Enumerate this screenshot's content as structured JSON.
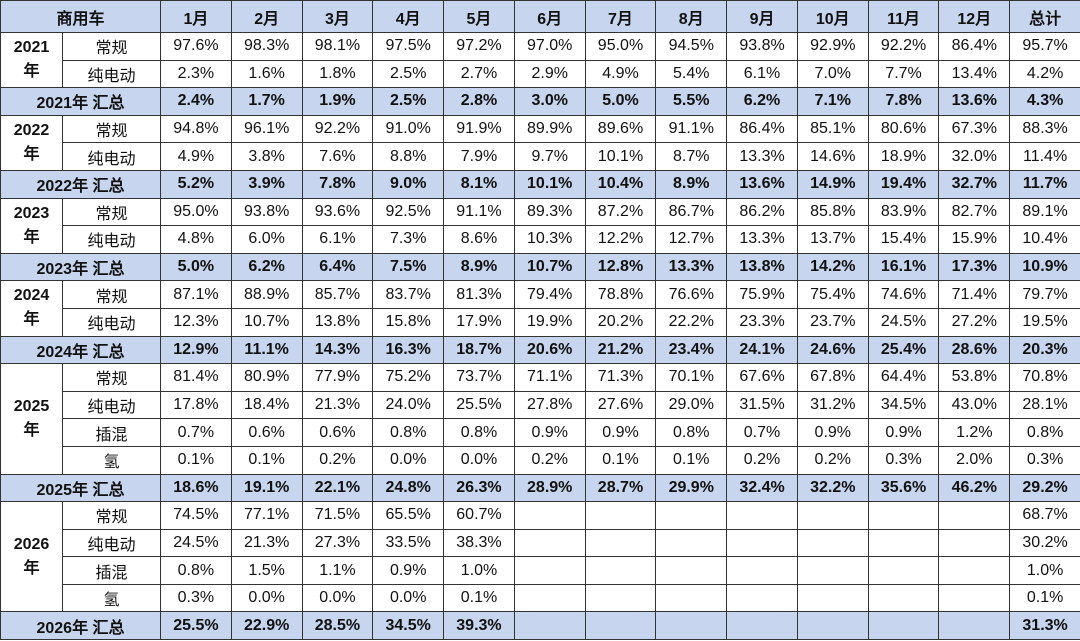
{
  "header": {
    "label": "商用车",
    "months": [
      "1月",
      "2月",
      "3月",
      "4月",
      "5月",
      "6月",
      "7月",
      "8月",
      "9月",
      "10月",
      "11月",
      "12月"
    ],
    "total": "总计"
  },
  "groups": [
    {
      "year": [
        "2021",
        "年"
      ],
      "rows": [
        {
          "type": "常规",
          "values": [
            "97.6%",
            "98.3%",
            "98.1%",
            "97.5%",
            "97.2%",
            "97.0%",
            "95.0%",
            "94.5%",
            "93.8%",
            "92.9%",
            "92.2%",
            "86.4%",
            "95.7%"
          ]
        },
        {
          "type": "纯电动",
          "values": [
            "2.3%",
            "1.6%",
            "1.8%",
            "2.5%",
            "2.7%",
            "2.9%",
            "4.9%",
            "5.4%",
            "6.1%",
            "7.0%",
            "7.7%",
            "13.4%",
            "4.2%"
          ]
        }
      ],
      "summary": {
        "label": "2021年 汇总",
        "values": [
          "2.4%",
          "1.7%",
          "1.9%",
          "2.5%",
          "2.8%",
          "3.0%",
          "5.0%",
          "5.5%",
          "6.2%",
          "7.1%",
          "7.8%",
          "13.6%",
          "4.3%"
        ]
      }
    },
    {
      "year": [
        "2022",
        "年"
      ],
      "rows": [
        {
          "type": "常规",
          "values": [
            "94.8%",
            "96.1%",
            "92.2%",
            "91.0%",
            "91.9%",
            "89.9%",
            "89.6%",
            "91.1%",
            "86.4%",
            "85.1%",
            "80.6%",
            "67.3%",
            "88.3%"
          ]
        },
        {
          "type": "纯电动",
          "values": [
            "4.9%",
            "3.8%",
            "7.6%",
            "8.8%",
            "7.9%",
            "9.7%",
            "10.1%",
            "8.7%",
            "13.3%",
            "14.6%",
            "18.9%",
            "32.0%",
            "11.4%"
          ]
        }
      ],
      "summary": {
        "label": "2022年 汇总",
        "values": [
          "5.2%",
          "3.9%",
          "7.8%",
          "9.0%",
          "8.1%",
          "10.1%",
          "10.4%",
          "8.9%",
          "13.6%",
          "14.9%",
          "19.4%",
          "32.7%",
          "11.7%"
        ]
      }
    },
    {
      "year": [
        "2023",
        "年"
      ],
      "rows": [
        {
          "type": "常规",
          "values": [
            "95.0%",
            "93.8%",
            "93.6%",
            "92.5%",
            "91.1%",
            "89.3%",
            "87.2%",
            "86.7%",
            "86.2%",
            "85.8%",
            "83.9%",
            "82.7%",
            "89.1%"
          ]
        },
        {
          "type": "纯电动",
          "values": [
            "4.8%",
            "6.0%",
            "6.1%",
            "7.3%",
            "8.6%",
            "10.3%",
            "12.2%",
            "12.7%",
            "13.3%",
            "13.7%",
            "15.4%",
            "15.9%",
            "10.4%"
          ]
        }
      ],
      "summary": {
        "label": "2023年 汇总",
        "values": [
          "5.0%",
          "6.2%",
          "6.4%",
          "7.5%",
          "8.9%",
          "10.7%",
          "12.8%",
          "13.3%",
          "13.8%",
          "14.2%",
          "16.1%",
          "17.3%",
          "10.9%"
        ]
      }
    },
    {
      "year": [
        "2024",
        "年"
      ],
      "rows": [
        {
          "type": "常规",
          "values": [
            "87.1%",
            "88.9%",
            "85.7%",
            "83.7%",
            "81.3%",
            "79.4%",
            "78.8%",
            "76.6%",
            "75.9%",
            "75.4%",
            "74.6%",
            "71.4%",
            "79.7%"
          ]
        },
        {
          "type": "纯电动",
          "values": [
            "12.3%",
            "10.7%",
            "13.8%",
            "15.8%",
            "17.9%",
            "19.9%",
            "20.2%",
            "22.2%",
            "23.3%",
            "23.7%",
            "24.5%",
            "27.2%",
            "19.5%"
          ]
        }
      ],
      "summary": {
        "label": "2024年 汇总",
        "values": [
          "12.9%",
          "11.1%",
          "14.3%",
          "16.3%",
          "18.7%",
          "20.6%",
          "21.2%",
          "23.4%",
          "24.1%",
          "24.6%",
          "25.4%",
          "28.6%",
          "20.3%"
        ]
      }
    },
    {
      "year": [
        "2025",
        "年"
      ],
      "rows": [
        {
          "type": "常规",
          "values": [
            "81.4%",
            "80.9%",
            "77.9%",
            "75.2%",
            "73.7%",
            "71.1%",
            "71.3%",
            "70.1%",
            "67.6%",
            "67.8%",
            "64.4%",
            "53.8%",
            "70.8%"
          ]
        },
        {
          "type": "纯电动",
          "values": [
            "17.8%",
            "18.4%",
            "21.3%",
            "24.0%",
            "25.5%",
            "27.8%",
            "27.6%",
            "29.0%",
            "31.5%",
            "31.2%",
            "34.5%",
            "43.0%",
            "28.1%"
          ]
        },
        {
          "type": "插混",
          "values": [
            "0.7%",
            "0.6%",
            "0.6%",
            "0.8%",
            "0.8%",
            "0.9%",
            "0.9%",
            "0.8%",
            "0.7%",
            "0.9%",
            "0.9%",
            "1.2%",
            "0.8%"
          ]
        },
        {
          "type": "氢",
          "values": [
            "0.1%",
            "0.1%",
            "0.2%",
            "0.0%",
            "0.0%",
            "0.2%",
            "0.1%",
            "0.1%",
            "0.2%",
            "0.2%",
            "0.3%",
            "2.0%",
            "0.3%"
          ]
        }
      ],
      "summary": {
        "label": "2025年 汇总",
        "values": [
          "18.6%",
          "19.1%",
          "22.1%",
          "24.8%",
          "26.3%",
          "28.9%",
          "28.7%",
          "29.9%",
          "32.4%",
          "32.2%",
          "35.6%",
          "46.2%",
          "29.2%"
        ]
      }
    },
    {
      "year": [
        "2026",
        "年"
      ],
      "rows": [
        {
          "type": "常规",
          "values": [
            "74.5%",
            "77.1%",
            "71.5%",
            "65.5%",
            "60.7%",
            null,
            null,
            null,
            null,
            null,
            null,
            null,
            "68.7%"
          ]
        },
        {
          "type": "纯电动",
          "values": [
            "24.5%",
            "21.3%",
            "27.3%",
            "33.5%",
            "38.3%",
            null,
            null,
            null,
            null,
            null,
            null,
            null,
            "30.2%"
          ]
        },
        {
          "type": "插混",
          "values": [
            "0.8%",
            "1.5%",
            "1.1%",
            "0.9%",
            "1.0%",
            null,
            null,
            null,
            null,
            null,
            null,
            null,
            "1.0%"
          ]
        },
        {
          "type": "氢",
          "values": [
            "0.3%",
            "0.0%",
            "0.0%",
            "0.0%",
            "0.1%",
            null,
            null,
            null,
            null,
            null,
            null,
            null,
            "0.1%"
          ]
        }
      ],
      "summary": {
        "label": "2026年 汇总",
        "values": [
          "25.5%",
          "22.9%",
          "28.5%",
          "34.5%",
          "39.3%",
          null,
          null,
          null,
          null,
          null,
          null,
          null,
          "31.3%"
        ]
      }
    }
  ]
}
